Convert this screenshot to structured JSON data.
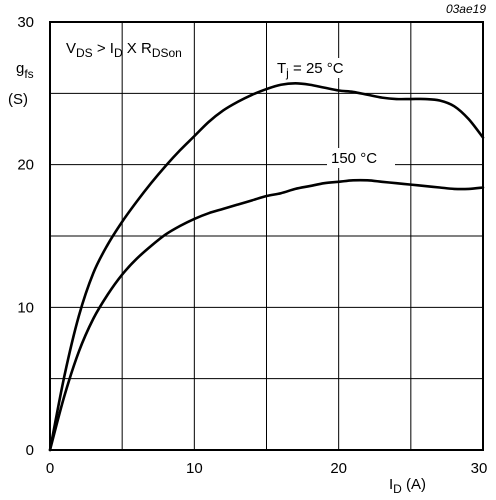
{
  "chart_data": {
    "type": "line",
    "reference": "03ae19",
    "condition": {
      "parts": [
        {
          "text": "V",
          "sub": false
        },
        {
          "text": "DS",
          "sub": true
        },
        {
          "text": " > I",
          "sub": false
        },
        {
          "text": "D",
          "sub": true
        },
        {
          "text": " X R",
          "sub": false
        },
        {
          "text": "DSon",
          "sub": true
        }
      ]
    },
    "xlabel": {
      "main": "I",
      "sub": "D",
      "unit": " (A)"
    },
    "ylabel": {
      "main": "g",
      "sub": "fs",
      "unit": "(S)"
    },
    "xlim": [
      0,
      30
    ],
    "ylim": [
      0,
      30
    ],
    "x_tick_labels": [
      "0",
      "10",
      "20",
      "30"
    ],
    "y_tick_labels": [
      "0",
      "10",
      "20",
      "30"
    ],
    "grid": true,
    "series": [
      {
        "name": "Tj = 25 °C",
        "label_parts": [
          {
            "text": "T",
            "sub": false
          },
          {
            "text": "j",
            "sub": true
          },
          {
            "text": " = 25 °C",
            "sub": false
          }
        ],
        "x": [
          0,
          1,
          2,
          3,
          4,
          5,
          6,
          7,
          8,
          9,
          10,
          11,
          12,
          13,
          14,
          15,
          16,
          17,
          18,
          19,
          20,
          21,
          22,
          23,
          24,
          25,
          26,
          27,
          28,
          29,
          30
        ],
        "y": [
          0,
          5.2,
          9.4,
          12.4,
          14.4,
          16.0,
          17.4,
          18.7,
          19.9,
          21.0,
          22.0,
          23.0,
          23.8,
          24.4,
          24.9,
          25.3,
          25.6,
          25.7,
          25.6,
          25.4,
          25.2,
          25.1,
          24.9,
          24.7,
          24.6,
          24.6,
          24.6,
          24.5,
          24.1,
          23.2,
          21.9
        ]
      },
      {
        "name": "150 °C",
        "label_parts": [
          {
            "text": "150 °C",
            "sub": false
          }
        ],
        "x": [
          0,
          1,
          2,
          3,
          4,
          5,
          6,
          7,
          8,
          9,
          10,
          11,
          12,
          13,
          14,
          15,
          16,
          17,
          18,
          19,
          20,
          21,
          22,
          23,
          24,
          25,
          26,
          27,
          28,
          29,
          30
        ],
        "y": [
          0,
          3.8,
          6.9,
          9.2,
          10.9,
          12.3,
          13.4,
          14.3,
          15.1,
          15.7,
          16.2,
          16.6,
          16.9,
          17.2,
          17.5,
          17.8,
          18.0,
          18.3,
          18.5,
          18.7,
          18.8,
          18.9,
          18.9,
          18.8,
          18.7,
          18.6,
          18.5,
          18.4,
          18.3,
          18.3,
          18.4
        ]
      }
    ]
  }
}
